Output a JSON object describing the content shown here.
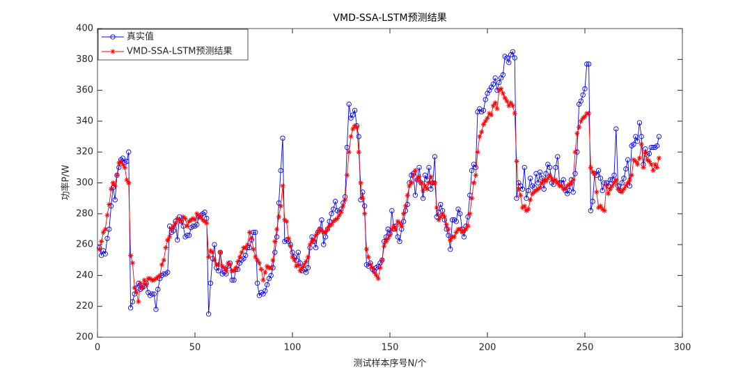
{
  "chart_data": {
    "type": "line",
    "title": "VMD-SSA-LSTM预测结果",
    "x_label": "测试样本序号N/个",
    "y_label": "功率P/W",
    "xlim": [
      0,
      300
    ],
    "xticks": [
      0,
      50,
      100,
      150,
      200,
      250,
      300
    ],
    "ylim": [
      200,
      400
    ],
    "yticks": [
      200,
      220,
      240,
      260,
      280,
      300,
      320,
      340,
      360,
      380,
      400
    ],
    "legend": "upper left",
    "series": [
      {
        "name": "真实值",
        "color": "#0000ff",
        "marker": "o",
        "values": [
          258,
          253,
          256,
          254,
          264,
          270,
          285,
          297,
          289,
          305,
          310,
          315,
          316,
          313,
          314,
          320,
          219,
          223,
          228,
          232,
          235,
          231,
          232,
          233,
          235,
          229,
          227,
          228,
          228,
          218,
          231,
          238,
          240,
          241,
          241,
          242,
          272,
          268,
          269,
          275,
          263,
          278,
          275,
          272,
          265,
          266,
          266,
          271,
          272,
          272,
          273,
          278,
          279,
          280,
          281,
          277,
          215,
          235,
          251,
          260,
          245,
          243,
          255,
          241,
          242,
          241,
          246,
          248,
          237,
          237,
          244,
          244,
          248,
          250,
          251,
          253,
          258,
          258,
          263,
          268,
          268,
          235,
          227,
          229,
          228,
          230,
          234,
          238,
          240,
          245,
          255,
          265,
          287,
          308,
          329,
          262,
          263,
          262,
          260,
          255,
          252,
          250,
          255,
          248,
          243,
          244,
          242,
          245,
          258,
          265,
          262,
          258,
          268,
          270,
          276,
          260,
          265,
          270,
          275,
          280,
          283,
          288,
          282,
          281,
          283,
          287,
          291,
          323,
          351,
          342,
          344,
          347,
          337,
          330,
          289,
          294,
          285,
          247,
          246,
          248,
          244,
          243,
          245,
          246,
          248,
          250,
          262,
          265,
          270,
          267,
          282,
          270,
          272,
          265,
          262,
          270,
          275,
          282,
          286,
          300,
          305,
          306,
          292,
          302,
          310,
          300,
          290,
          305,
          302,
          310,
          296,
          300,
          317,
          278,
          281,
          286,
          282,
          276,
          270,
          266,
          257,
          276,
          276,
          275,
          283,
          280,
          270,
          265,
          272,
          278,
          292,
          308,
          312,
          310,
          346,
          348,
          346,
          347,
          354,
          358,
          360,
          362,
          364,
          368,
          360,
          365,
          368,
          370,
          382,
          381,
          378,
          383,
          385,
          381,
          290,
          300,
          298,
          296,
          310,
          290,
          295,
          303,
          298,
          297,
          306,
          300,
          307,
          303,
          296,
          306,
          312,
          310,
          300,
          299,
          310,
          317,
          300,
          300,
          302,
          295,
          293,
          295,
          302,
          294,
          306,
          320,
          351,
          353,
          357,
          361,
          377,
          377,
          282,
          288,
          306,
          305,
          308,
          303,
          295,
          300,
          300,
          298,
          302,
          302,
          305,
          335,
          298,
          295,
          300,
          303,
          309,
          315,
          298,
          324,
          325,
          330,
          327,
          339,
          330,
          312,
          322,
          318,
          319,
          323,
          323,
          323,
          324,
          330
        ]
      },
      {
        "name": "VMD-SSA-LSTM预测结果",
        "color": "#ff0000",
        "marker": "*",
        "values": [
          257,
          262,
          268,
          270,
          279,
          286,
          296,
          300,
          298,
          305,
          313,
          314,
          312,
          310,
          302,
          300,
          253,
          248,
          232,
          229,
          223,
          235,
          232,
          237,
          234,
          238,
          238,
          237,
          237,
          238,
          239,
          240,
          247,
          250,
          258,
          263,
          265,
          270,
          272,
          274,
          277,
          276,
          275,
          278,
          277,
          272,
          275,
          276,
          277,
          276,
          280,
          278,
          278,
          276,
          275,
          274,
          252,
          256,
          255,
          250,
          247,
          247,
          255,
          246,
          245,
          243,
          248,
          247,
          243,
          243,
          245,
          249,
          252,
          255,
          258,
          258,
          260,
          268,
          264,
          257,
          252,
          250,
          248,
          244,
          237,
          242,
          246,
          245,
          245,
          250,
          262,
          270,
          278,
          285,
          298,
          276,
          275,
          264,
          259,
          252,
          250,
          246,
          247,
          243,
          245,
          247,
          249,
          252,
          260,
          262,
          263,
          266,
          268,
          270,
          269,
          268,
          268,
          270,
          272,
          273,
          275,
          276,
          277,
          279,
          281,
          285,
          289,
          305,
          320,
          330,
          335,
          337,
          336,
          320,
          300,
          290,
          280,
          257,
          252,
          247,
          245,
          242,
          240,
          238,
          245,
          250,
          259,
          262,
          264,
          266,
          270,
          272,
          270,
          275,
          274,
          272,
          280,
          285,
          292,
          298,
          300,
          305,
          308,
          302,
          304,
          300,
          295,
          298,
          296,
          300,
          304,
          300,
          300,
          284,
          276,
          278,
          280,
          278,
          273,
          270,
          263,
          265,
          265,
          268,
          270,
          270,
          268,
          269,
          270,
          272,
          280,
          290,
          300,
          305,
          320,
          330,
          333,
          338,
          340,
          342,
          345,
          344,
          350,
          352,
          348,
          360,
          361,
          358,
          355,
          353,
          350,
          352,
          350,
          345,
          314,
          296,
          292,
          284,
          285,
          282,
          283,
          289,
          293,
          294,
          295,
          296,
          297,
          300,
          302,
          301,
          303,
          305,
          303,
          301,
          302,
          300,
          298,
          298,
          296,
          296,
          298,
          299,
          300,
          302,
          320,
          332,
          336,
          340,
          342,
          343,
          345,
          345,
          310,
          307,
          306,
          294,
          284,
          285,
          283,
          282,
          298,
          293,
          296,
          298,
          300,
          302,
          296,
          295,
          294,
          296,
          298,
          300,
          302,
          305,
          315,
          314,
          312,
          316,
          325,
          310,
          320,
          315,
          314,
          312,
          308,
          312,
          310,
          316
        ]
      }
    ]
  }
}
